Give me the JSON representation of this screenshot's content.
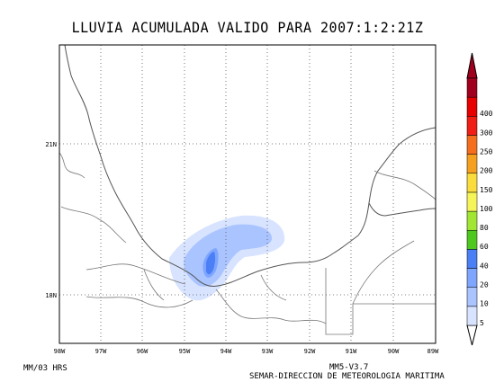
{
  "title": "LLUVIA ACUMULADA VALIDO PARA 2007:1:2:21Z",
  "map": {
    "lon_labels": [
      "98W",
      "97W",
      "96W",
      "95W",
      "94W",
      "93W",
      "92W",
      "91W",
      "90W",
      "89W"
    ],
    "lat_labels": [
      "21N",
      "18N"
    ],
    "grid": "dotted",
    "region": "Golfo de Mexico / Sureste de Mexico"
  },
  "legend": {
    "levels": [
      "5",
      "10",
      "20",
      "40",
      "60",
      "80",
      "100",
      "150",
      "200",
      "250",
      "300",
      "400"
    ],
    "colors": [
      "#d7e3ff",
      "#aac4ff",
      "#7fa6ff",
      "#4b7ff5",
      "#4ec81e",
      "#a0e632",
      "#f5f55a",
      "#fadc3c",
      "#f5a01e",
      "#f56e1e",
      "#f01e14",
      "#e60000",
      "#a0001e"
    ]
  },
  "footer": {
    "left": "MM/03 HRS",
    "model": "MM5-V3.7",
    "agency": "SEMAR-DIRECCION DE METEOROLOGIA MARITIMA"
  }
}
